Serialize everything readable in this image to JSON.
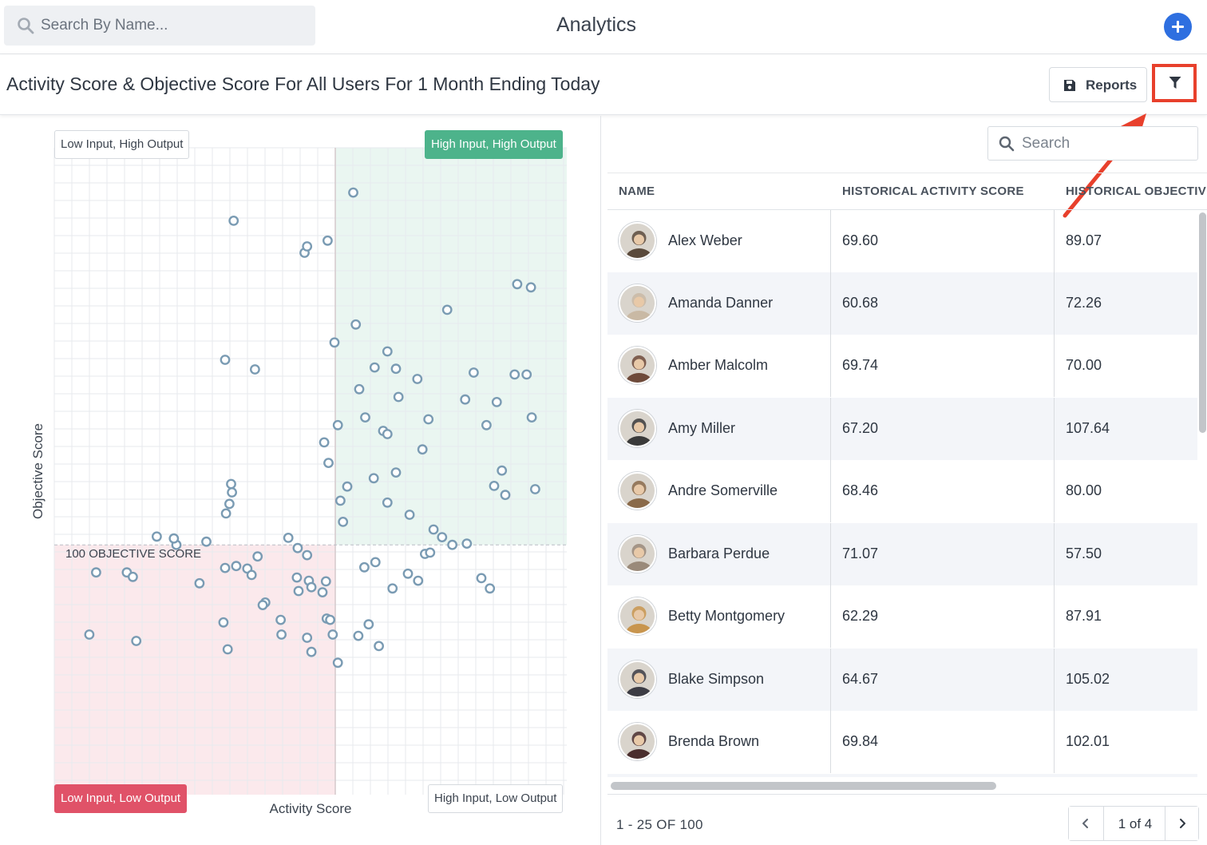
{
  "topbar": {
    "search_placeholder": "Search By Name...",
    "title": "Analytics"
  },
  "subbar": {
    "title": "Activity Score & Objective Score For All Users For 1 Month Ending Today",
    "reports_label": "Reports"
  },
  "quadrants": {
    "top_left": "Low Input, High Output",
    "top_right": "High Input, High Output",
    "bottom_left": "Low Input, Low Output",
    "bottom_right": "High Input, Low Output"
  },
  "chart_data": {
    "type": "scatter",
    "xlabel": "Activity Score",
    "ylabel": "Objective Score",
    "reference_line_label": "100 OBJECTIVE SCORE",
    "reference_y": 100,
    "points": [
      [
        86.0,
        155.0
      ],
      [
        72.0,
        150.6
      ],
      [
        83.0,
        147.5
      ],
      [
        80.3,
        145.6
      ],
      [
        80.6,
        146.6
      ],
      [
        106.8,
        140.2
      ],
      [
        105.2,
        140.7
      ],
      [
        97.0,
        136.7
      ],
      [
        86.3,
        134.4
      ],
      [
        83.8,
        131.6
      ],
      [
        90.0,
        130.2
      ],
      [
        71.0,
        128.9
      ],
      [
        88.5,
        127.7
      ],
      [
        74.5,
        127.4
      ],
      [
        106.3,
        126.6
      ],
      [
        104.9,
        126.6
      ],
      [
        100.1,
        126.9
      ],
      [
        91.0,
        127.5
      ],
      [
        93.5,
        125.9
      ],
      [
        86.7,
        124.3
      ],
      [
        91.3,
        123.1
      ],
      [
        99.1,
        122.7
      ],
      [
        102.8,
        122.3
      ],
      [
        87.4,
        119.9
      ],
      [
        106.9,
        119.9
      ],
      [
        94.8,
        119.6
      ],
      [
        84.2,
        118.7
      ],
      [
        101.6,
        118.7
      ],
      [
        89.5,
        117.8
      ],
      [
        90.0,
        117.3
      ],
      [
        82.6,
        116.0
      ],
      [
        94.1,
        114.9
      ],
      [
        83.1,
        112.8
      ],
      [
        91.0,
        111.3
      ],
      [
        103.4,
        111.6
      ],
      [
        88.4,
        110.4
      ],
      [
        71.8,
        108.2
      ],
      [
        71.7,
        109.5
      ],
      [
        102.5,
        109.2
      ],
      [
        85.3,
        109.1
      ],
      [
        103.8,
        107.8
      ],
      [
        90.0,
        106.6
      ],
      [
        84.5,
        106.9
      ],
      [
        71.5,
        106.4
      ],
      [
        71.1,
        104.9
      ],
      [
        84.8,
        103.6
      ],
      [
        107.3,
        108.7
      ],
      [
        92.6,
        104.7
      ],
      [
        95.4,
        102.4
      ],
      [
        96.4,
        101.2
      ],
      [
        68.8,
        100.5
      ],
      [
        65.3,
        100.0
      ],
      [
        65.0,
        101.0
      ],
      [
        63.0,
        101.3
      ],
      [
        99.3,
        100.2
      ],
      [
        78.4,
        101.1
      ],
      [
        79.5,
        99.5
      ],
      [
        80.6,
        98.4
      ],
      [
        88.6,
        97.3
      ],
      [
        97.6,
        100.0
      ],
      [
        94.4,
        98.6
      ],
      [
        74.8,
        98.2
      ],
      [
        95.0,
        98.8
      ],
      [
        71.0,
        96.4
      ],
      [
        72.3,
        96.7
      ],
      [
        73.6,
        96.3
      ],
      [
        87.3,
        96.5
      ],
      [
        93.6,
        94.4
      ],
      [
        101.0,
        94.8
      ],
      [
        68.0,
        94.0
      ],
      [
        74.1,
        95.3
      ],
      [
        92.4,
        95.5
      ],
      [
        59.5,
        95.7
      ],
      [
        55.9,
        95.7
      ],
      [
        60.2,
        95.0
      ],
      [
        79.4,
        94.9
      ],
      [
        82.8,
        94.3
      ],
      [
        80.8,
        94.4
      ],
      [
        81.1,
        93.4
      ],
      [
        90.6,
        93.2
      ],
      [
        102.0,
        93.2
      ],
      [
        79.6,
        92.8
      ],
      [
        82.4,
        92.6
      ],
      [
        75.7,
        91.0
      ],
      [
        75.4,
        90.6
      ],
      [
        82.9,
        88.5
      ],
      [
        77.5,
        88.3
      ],
      [
        83.3,
        88.3
      ],
      [
        87.8,
        87.6
      ],
      [
        70.8,
        87.9
      ],
      [
        77.6,
        86.0
      ],
      [
        83.6,
        86.0
      ],
      [
        55.1,
        86.0
      ],
      [
        71.3,
        83.7
      ],
      [
        80.6,
        85.5
      ],
      [
        60.6,
        85.0
      ],
      [
        86.6,
        85.8
      ],
      [
        81.1,
        83.3
      ],
      [
        89.0,
        84.2
      ],
      [
        84.2,
        81.6
      ]
    ],
    "x_range": [
      51.0,
      111.0
    ],
    "y_range": [
      61.0,
      162.0
    ]
  },
  "table": {
    "search_placeholder": "Search",
    "columns": [
      "NAME",
      "HISTORICAL ACTIVITY SCORE",
      "HISTORICAL OBJECTIVE SCORE"
    ],
    "rows": [
      {
        "name": "Alex Weber",
        "activity": "69.60",
        "objective": "89.07",
        "avatar_color": "#5a4a3c"
      },
      {
        "name": "Amanda Danner",
        "activity": "60.68",
        "objective": "72.26",
        "avatar_color": "#c9b9a4"
      },
      {
        "name": "Amber Malcolm",
        "activity": "69.74",
        "objective": "70.00",
        "avatar_color": "#6e4a3a"
      },
      {
        "name": "Amy Miller",
        "activity": "67.20",
        "objective": "107.64",
        "avatar_color": "#3a3a3a"
      },
      {
        "name": "Andre Somerville",
        "activity": "68.46",
        "objective": "80.00",
        "avatar_color": "#8a6a4a"
      },
      {
        "name": "Barbara Perdue",
        "activity": "71.07",
        "objective": "57.50",
        "avatar_color": "#9a8a7a"
      },
      {
        "name": "Betty Montgomery",
        "activity": "62.29",
        "objective": "87.91",
        "avatar_color": "#c8954e"
      },
      {
        "name": "Blake Simpson",
        "activity": "64.67",
        "objective": "105.02",
        "avatar_color": "#3c3c44"
      },
      {
        "name": "Brenda Brown",
        "activity": "69.84",
        "objective": "102.01",
        "avatar_color": "#4a2e2e"
      }
    ],
    "count_label": "1 - 25 OF 100",
    "page_label": "1 of 4"
  },
  "colors": {
    "accent": "#2e6fe0",
    "annotation": "#e8402c",
    "high_high": "#4db38b",
    "low_low": "#e05268",
    "point": "#7a9bb3"
  }
}
